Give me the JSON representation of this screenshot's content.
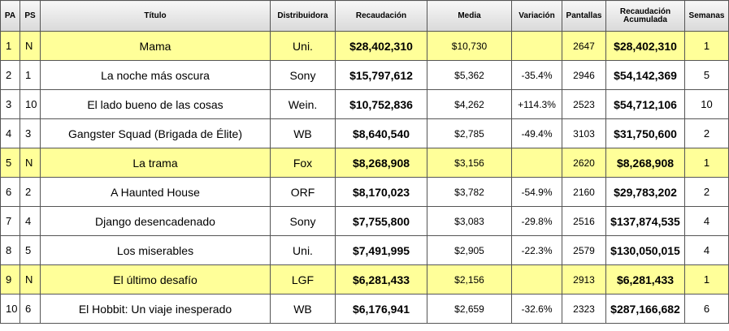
{
  "headers": {
    "pa": "PA",
    "ps": "PS",
    "titulo": "Título",
    "distribuidora": "Distribuidora",
    "recaudacion": "Recaudación",
    "media": "Media",
    "variacion": "Variación",
    "pantallas": "Pantallas",
    "acumulada": "Recaudación Acumulada",
    "semanas": "Semanas"
  },
  "colors": {
    "new_entry_highlight": "#ffff99",
    "header_gradient": [
      "#f7f7f7",
      "#d9d9d9"
    ],
    "border": "#555555"
  },
  "rows": [
    {
      "pa": "1",
      "ps": "N",
      "titulo": "Mama",
      "distribuidora": "Uni.",
      "recaudacion": "$28,402,310",
      "media": "$10,730",
      "variacion": "",
      "pantallas": "2647",
      "acumulada": "$28,402,310",
      "semanas": "1",
      "nuevo": true
    },
    {
      "pa": "2",
      "ps": "1",
      "titulo": "La noche más oscura",
      "distribuidora": "Sony",
      "recaudacion": "$15,797,612",
      "media": "$5,362",
      "variacion": "-35.4%",
      "pantallas": "2946",
      "acumulada": "$54,142,369",
      "semanas": "5",
      "nuevo": false
    },
    {
      "pa": "3",
      "ps": "10",
      "titulo": "El lado bueno de las cosas",
      "distribuidora": "Wein.",
      "recaudacion": "$10,752,836",
      "media": "$4,262",
      "variacion": "+114.3%",
      "pantallas": "2523",
      "acumulada": "$54,712,106",
      "semanas": "10",
      "nuevo": false
    },
    {
      "pa": "4",
      "ps": "3",
      "titulo": "Gangster Squad (Brigada de Élite)",
      "distribuidora": "WB",
      "recaudacion": "$8,640,540",
      "media": "$2,785",
      "variacion": "-49.4%",
      "pantallas": "3103",
      "acumulada": "$31,750,600",
      "semanas": "2",
      "nuevo": false
    },
    {
      "pa": "5",
      "ps": "N",
      "titulo": "La trama",
      "distribuidora": "Fox",
      "recaudacion": "$8,268,908",
      "media": "$3,156",
      "variacion": "",
      "pantallas": "2620",
      "acumulada": "$8,268,908",
      "semanas": "1",
      "nuevo": true
    },
    {
      "pa": "6",
      "ps": "2",
      "titulo": "A Haunted House",
      "distribuidora": "ORF",
      "recaudacion": "$8,170,023",
      "media": "$3,782",
      "variacion": "-54.9%",
      "pantallas": "2160",
      "acumulada": "$29,783,202",
      "semanas": "2",
      "nuevo": false
    },
    {
      "pa": "7",
      "ps": "4",
      "titulo": "Django desencadenado",
      "distribuidora": "Sony",
      "recaudacion": "$7,755,800",
      "media": "$3,083",
      "variacion": "-29.8%",
      "pantallas": "2516",
      "acumulada": "$137,874,535",
      "semanas": "4",
      "nuevo": false
    },
    {
      "pa": "8",
      "ps": "5",
      "titulo": "Los miserables",
      "distribuidora": "Uni.",
      "recaudacion": "$7,491,995",
      "media": "$2,905",
      "variacion": "-22.3%",
      "pantallas": "2579",
      "acumulada": "$130,050,015",
      "semanas": "4",
      "nuevo": false
    },
    {
      "pa": "9",
      "ps": "N",
      "titulo": "El último desafío",
      "distribuidora": "LGF",
      "recaudacion": "$6,281,433",
      "media": "$2,156",
      "variacion": "",
      "pantallas": "2913",
      "acumulada": "$6,281,433",
      "semanas": "1",
      "nuevo": true
    },
    {
      "pa": "10",
      "ps": "6",
      "titulo": "El Hobbit: Un viaje inesperado",
      "distribuidora": "WB",
      "recaudacion": "$6,176,941",
      "media": "$2,659",
      "variacion": "-32.6%",
      "pantallas": "2323",
      "acumulada": "$287,166,682",
      "semanas": "6",
      "nuevo": false
    }
  ]
}
